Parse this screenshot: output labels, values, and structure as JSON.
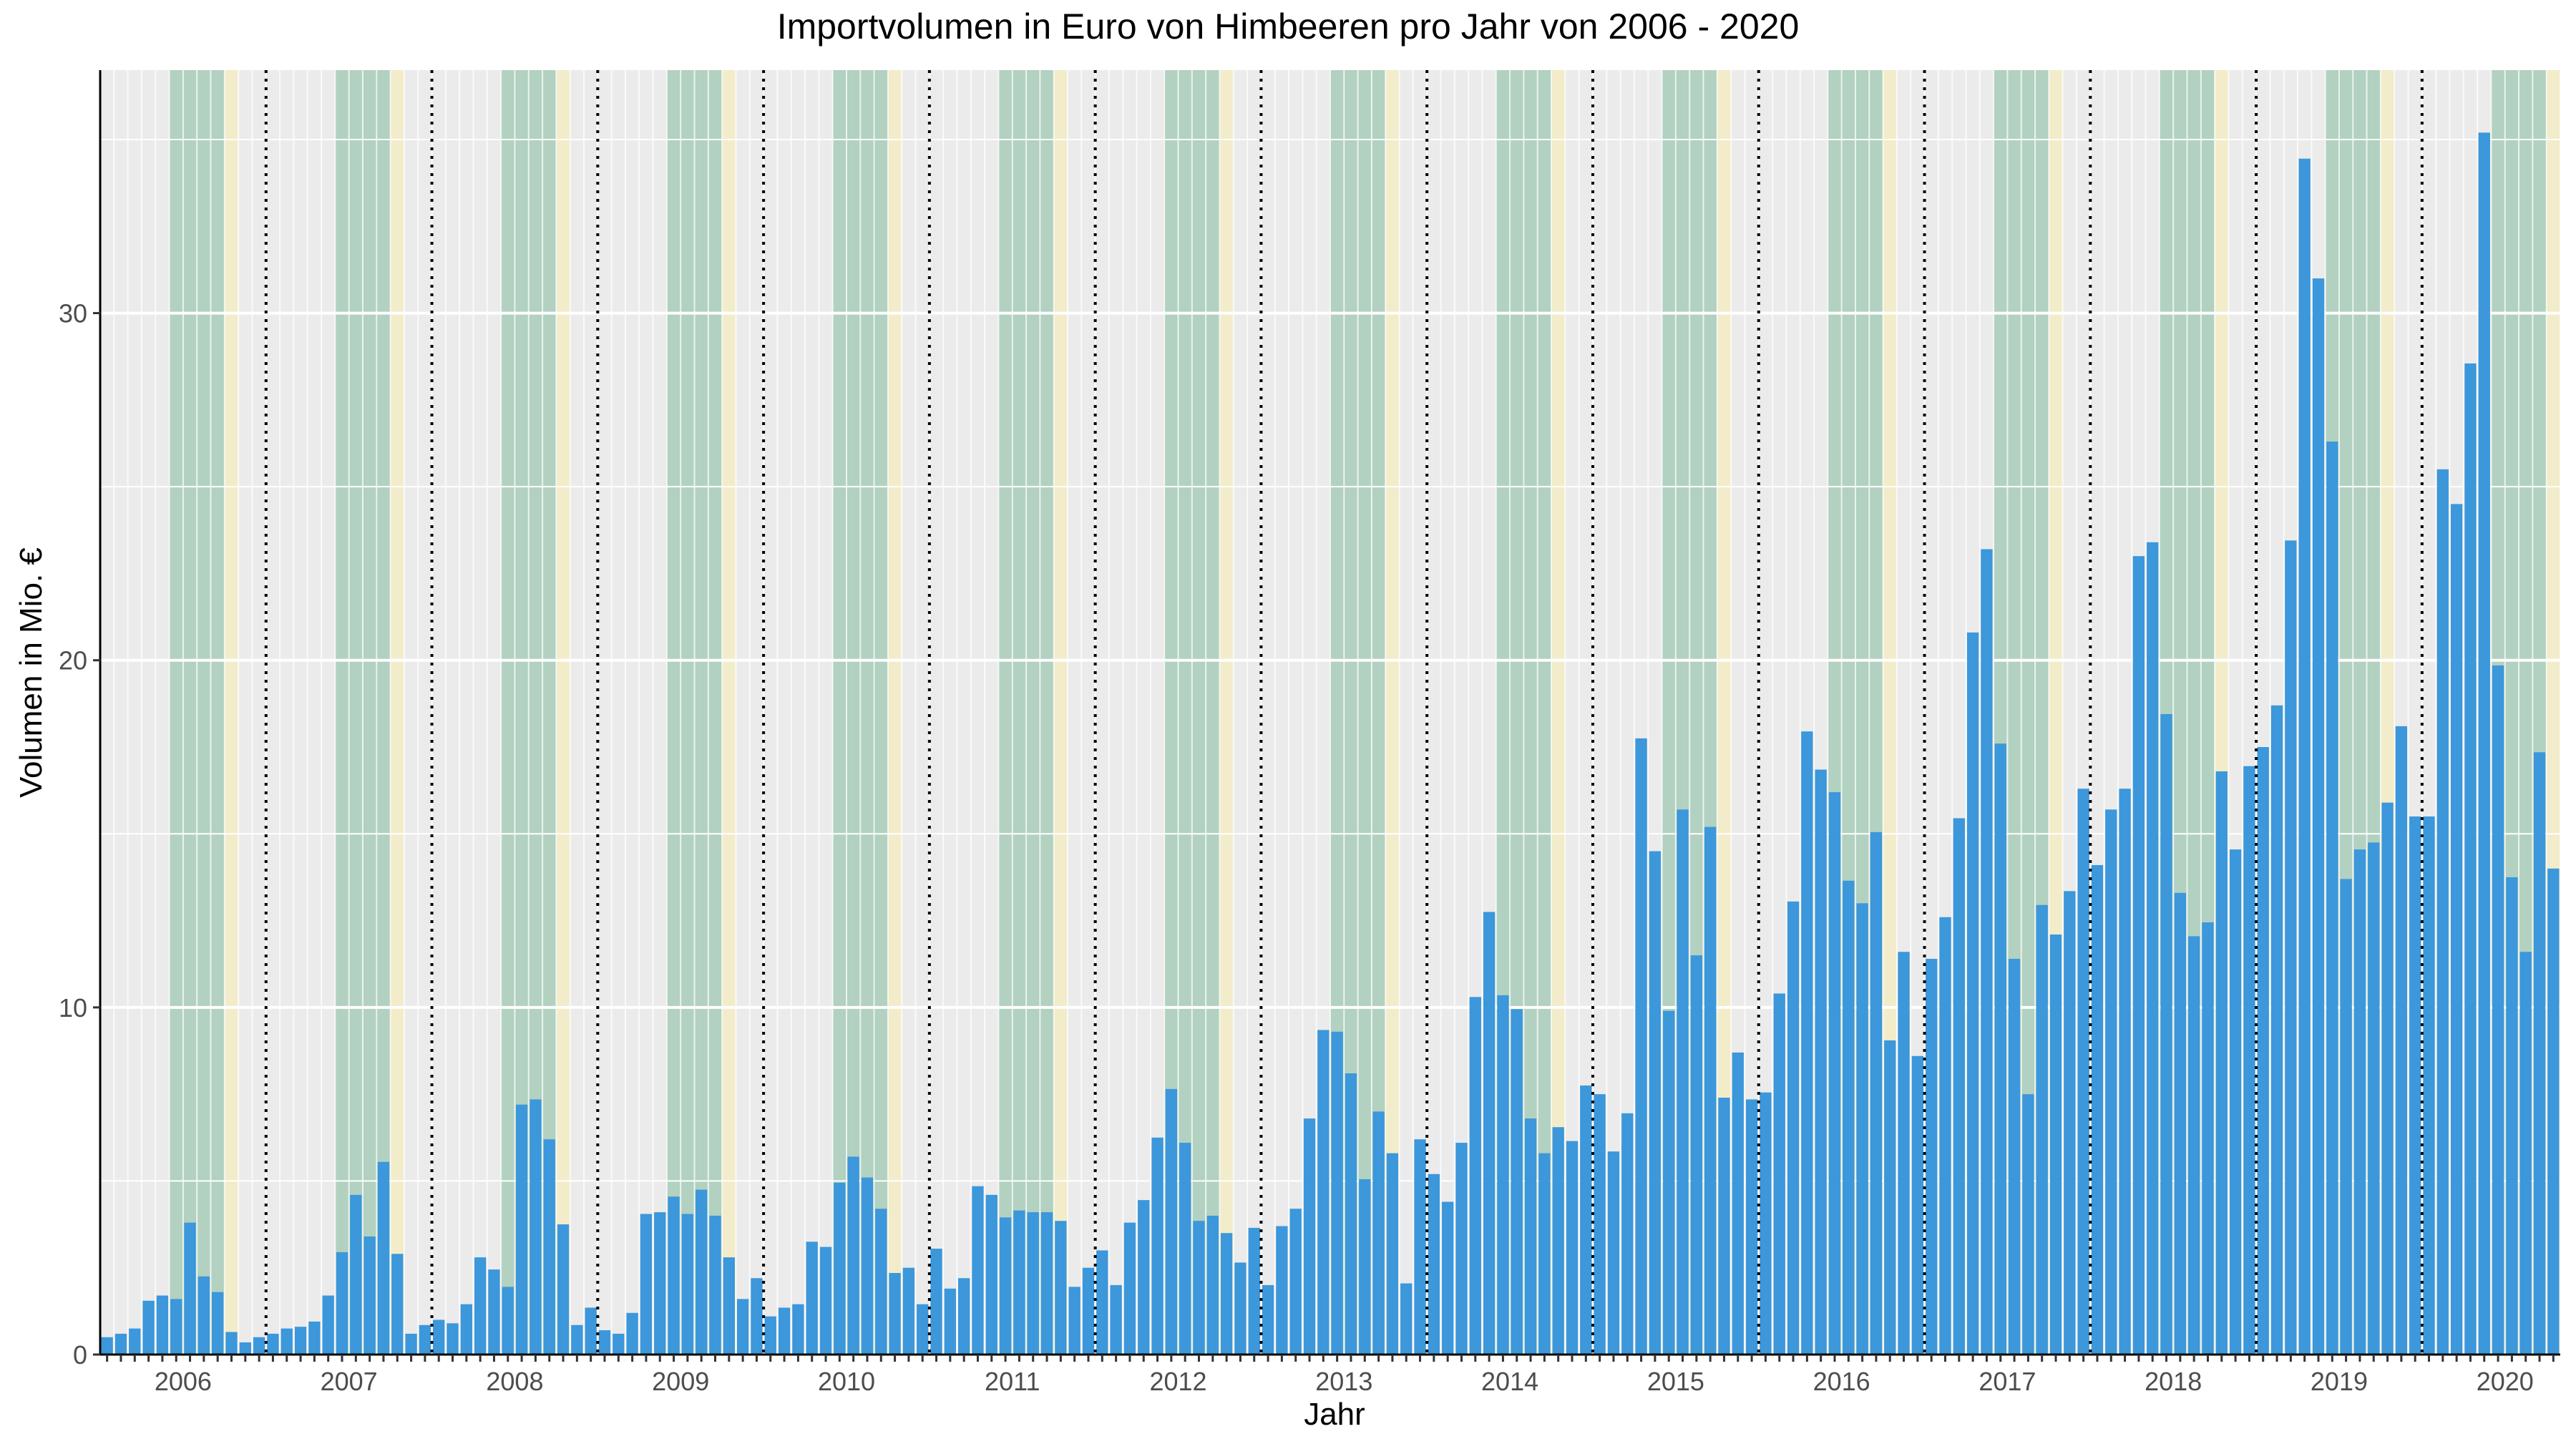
{
  "chart_data": {
    "type": "bar",
    "title": "Importvolumen in Euro von Himbeeren pro Jahr von 2006 - 2020",
    "xlabel": "Jahr",
    "ylabel": "Volumen in Mio. €",
    "ylim": [
      0,
      37
    ],
    "yticks": [
      0,
      10,
      20,
      30
    ],
    "grid": true,
    "bar_color": "#3c97db",
    "panel_color": "#ebebeb",
    "shade_green": "#a8cdb8",
    "shade_yellow": "#f3ecc7",
    "x_years": [
      "2006",
      "2007",
      "2008",
      "2009",
      "2010",
      "2011",
      "2012",
      "2013",
      "2014",
      "2015",
      "2016",
      "2017",
      "2018",
      "2019",
      "2020"
    ],
    "monthly_values": [
      0.5,
      0.6,
      0.75,
      1.55,
      1.7,
      1.6,
      3.8,
      2.25,
      1.8,
      0.65,
      0.35,
      0.5,
      0.6,
      0.75,
      0.8,
      0.95,
      1.7,
      2.95,
      4.6,
      3.4,
      5.55,
      2.9,
      0.6,
      0.85,
      1.0,
      0.9,
      1.45,
      2.8,
      2.45,
      1.95,
      7.2,
      7.35,
      6.2,
      3.75,
      0.85,
      1.35,
      0.7,
      0.6,
      1.2,
      4.05,
      4.1,
      4.55,
      4.05,
      4.75,
      4.0,
      2.8,
      1.6,
      2.2,
      1.1,
      1.35,
      1.45,
      3.25,
      3.1,
      4.95,
      5.7,
      5.1,
      4.2,
      2.35,
      2.5,
      1.45,
      3.05,
      1.9,
      2.2,
      4.85,
      4.6,
      3.95,
      4.15,
      4.1,
      4.1,
      3.85,
      1.95,
      2.5,
      3.0,
      2.0,
      3.8,
      4.45,
      6.25,
      7.65,
      6.1,
      3.85,
      4.0,
      3.5,
      2.65,
      3.65,
      2.0,
      3.7,
      4.2,
      6.8,
      9.35,
      9.3,
      8.1,
      5.05,
      7.0,
      5.8,
      2.05,
      6.2,
      5.2,
      4.4,
      6.1,
      10.3,
      12.75,
      10.35,
      9.95,
      6.8,
      5.8,
      6.55,
      6.15,
      7.75,
      7.5,
      5.85,
      6.95,
      17.75,
      14.5,
      9.9,
      15.7,
      11.5,
      15.2,
      7.4,
      8.7,
      7.35,
      7.55,
      10.4,
      13.05,
      17.95,
      16.85,
      16.2,
      13.65,
      13.0,
      15.05,
      9.05,
      11.6,
      8.6,
      11.4,
      12.6,
      15.45,
      20.8,
      23.2,
      17.6,
      11.4,
      7.5,
      12.95,
      12.1,
      13.35,
      16.3,
      14.1,
      15.7,
      16.3,
      23.0,
      23.4,
      18.45,
      13.3,
      12.05,
      12.45,
      16.8,
      14.55,
      16.95,
      17.5,
      18.7,
      23.45,
      34.45,
      31.0,
      26.3,
      13.7,
      14.55,
      14.75,
      15.9,
      18.1,
      15.5,
      15.5,
      25.5,
      24.5,
      28.55,
      35.2,
      19.85,
      13.75,
      11.6,
      17.35,
      14.0
    ]
  }
}
